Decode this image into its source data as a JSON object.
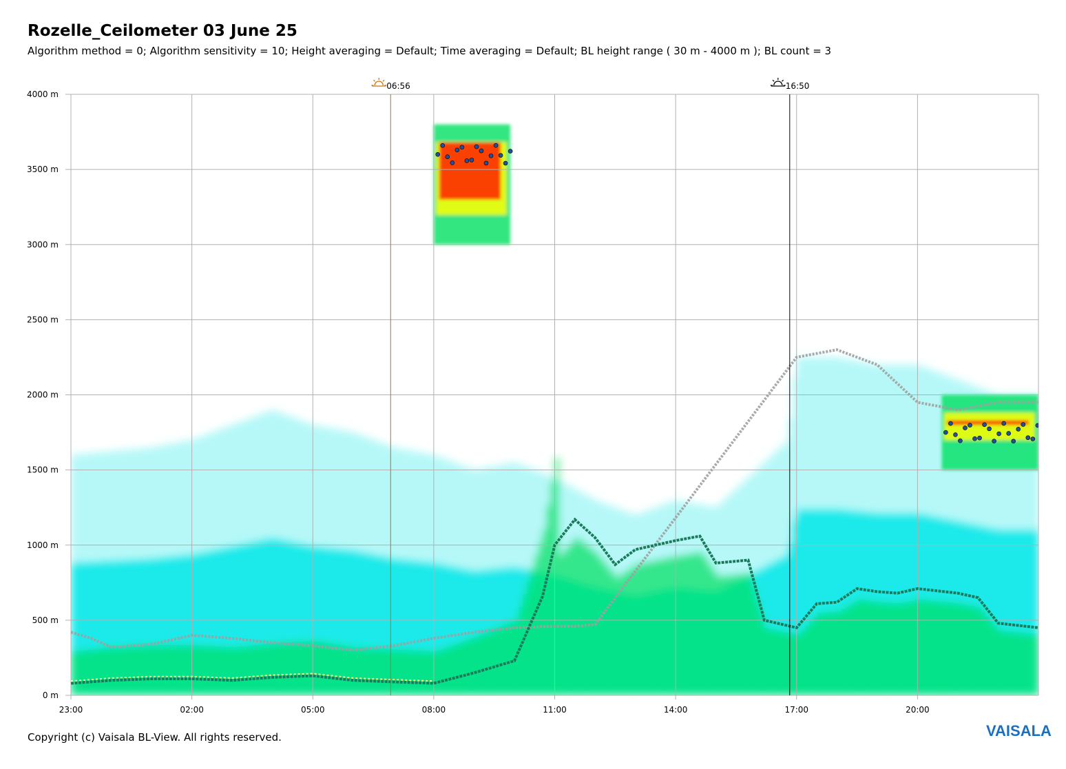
{
  "chart_data": {
    "type": "heatmap",
    "title": "Rozelle_Ceilometer 03 June 25",
    "subtitle": "Algorithm method = 0; Algorithm sensitivity = 10; Height averaging = Default; Time averaging = Default; BL height range ( 30 m - 4000 m ); BL count = 3",
    "x_ticks": [
      {
        "label": "23:00",
        "hour": 0
      },
      {
        "label": "02:00",
        "hour": 3
      },
      {
        "label": "05:00",
        "hour": 6
      },
      {
        "label": "08:00",
        "hour": 9
      },
      {
        "label": "11:00",
        "hour": 12
      },
      {
        "label": "14:00",
        "hour": 15
      },
      {
        "label": "17:00",
        "hour": 18
      },
      {
        "label": "20:00",
        "hour": 21
      }
    ],
    "x_range_hours": [
      0,
      24
    ],
    "y_ticks": [
      {
        "label": "0 m",
        "value": 0
      },
      {
        "label": "500 m",
        "value": 500
      },
      {
        "label": "1000 m",
        "value": 1000
      },
      {
        "label": "1500 m",
        "value": 1500
      },
      {
        "label": "2000 m",
        "value": 2000
      },
      {
        "label": "2500 m",
        "value": 2500
      },
      {
        "label": "3000 m",
        "value": 3000
      },
      {
        "label": "3500 m",
        "value": 3500
      },
      {
        "label": "4000 m",
        "value": 4000
      }
    ],
    "ylim": [
      0,
      4000
    ],
    "grid": true,
    "sunrise": {
      "label": "06:56",
      "hour": 7.93
    },
    "sunset": {
      "label": "16:50",
      "hour": 17.83
    },
    "colors": {
      "grid": "#b0b0b0",
      "sunrise_line": "#b07030",
      "sunset_line": "#000000",
      "aerosol_light": "#7ff2f2",
      "aerosol_mid": "#00e8e8",
      "aerosol_high": "#00e060",
      "cloud_yellow": "#ffff00",
      "cloud_red": "#ff2000",
      "bl_main": "#1a7a5a",
      "bl_secondary": "#a0a0a0",
      "bl_low": "#ffff80",
      "cloud_base_marker": "#2050a0"
    },
    "boundary_layer_main": {
      "hour": [
        0,
        1,
        2,
        3,
        4,
        5,
        6,
        7,
        8,
        9,
        10,
        11,
        11.7,
        12,
        12.5,
        13,
        13.5,
        14,
        15,
        15.6,
        16,
        16.8,
        17.2,
        18,
        18.5,
        19,
        19.5,
        20,
        20.5,
        21,
        22,
        22.5,
        23,
        24
      ],
      "height_m": [
        80,
        100,
        110,
        110,
        100,
        120,
        130,
        100,
        90,
        80,
        150,
        230,
        660,
        1000,
        1170,
        1050,
        870,
        970,
        1030,
        1060,
        880,
        900,
        500,
        450,
        610,
        620,
        710,
        690,
        680,
        710,
        680,
        650,
        480,
        450
      ]
    },
    "boundary_layer_secondary": {
      "hour": [
        0,
        0.5,
        1,
        1.5,
        2,
        3,
        4,
        5,
        6,
        7,
        8,
        9,
        10,
        11,
        12,
        12.5,
        13,
        18,
        19,
        20,
        21,
        22,
        23,
        24
      ],
      "height_m": [
        420,
        380,
        320,
        330,
        340,
        400,
        380,
        350,
        330,
        300,
        330,
        380,
        420,
        450,
        460,
        460,
        470,
        2250,
        2300,
        2200,
        1950,
        1900,
        1950,
        1950
      ]
    },
    "cloud_layers": [
      {
        "hour_range": [
          9.0,
          10.9
        ],
        "height_range_m": [
          3000,
          3800
        ],
        "base_m": 3600
      },
      {
        "hour_range": [
          21.6,
          24
        ],
        "height_range_m": [
          1500,
          2000
        ],
        "base_m": 1750
      }
    ]
  },
  "footer": {
    "copyright": "Copyright (c) Vaisala BL-View. All rights reserved.",
    "logo": "VAISALA"
  }
}
